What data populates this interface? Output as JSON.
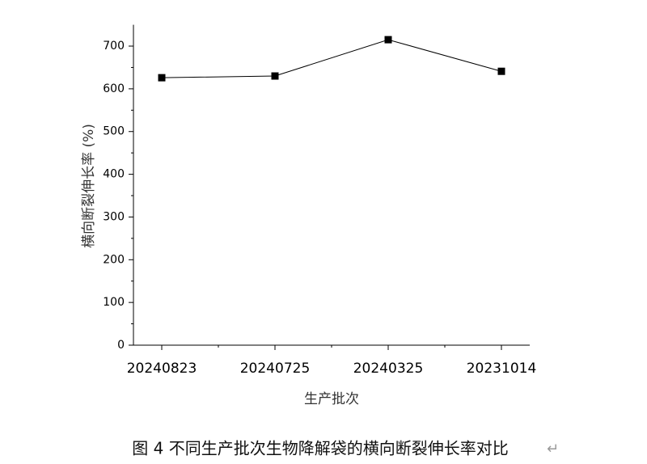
{
  "chart_data": {
    "type": "line",
    "x_label": "生产批次",
    "y_label": "横向断裂伸长率 (%)",
    "categories": [
      "20240823",
      "20240725",
      "20240325",
      "20231014"
    ],
    "values": [
      626,
      630,
      715,
      641
    ],
    "color": "#000000",
    "marker": "square",
    "ylim": [
      0,
      750
    ],
    "yticks": [
      0,
      100,
      200,
      300,
      400,
      500,
      600,
      700
    ],
    "grid": false
  },
  "caption": "图 4  不同生产批次生物降解袋的横向断裂伸长率对比",
  "paragraph_mark": "↵"
}
